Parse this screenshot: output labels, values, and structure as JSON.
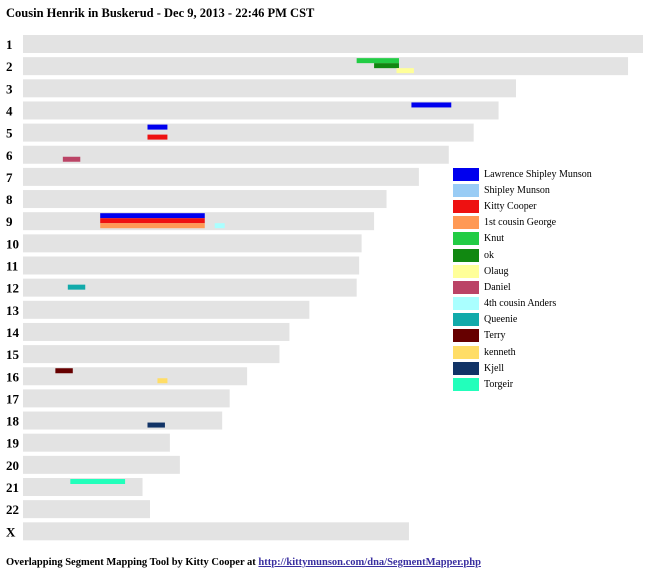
{
  "header": {
    "title": "Cousin Henrik in Buskerud - Dec 9, 2013 - 22:46 PM CST"
  },
  "footer": {
    "text": "Overlapping Segment Mapping Tool by Kitty Cooper at ",
    "link": "http://kittymunson.com/dna/SegmentMapper.php"
  },
  "chart_data": {
    "type": "segment-map",
    "title": "Cousin Henrik in Buskerud - Dec 9, 2013 - 22:46 PM CST",
    "chromosome_unit": "Mb",
    "chromosomes": [
      {
        "name": "1",
        "length": 249
      },
      {
        "name": "2",
        "length": 243
      },
      {
        "name": "3",
        "length": 198
      },
      {
        "name": "4",
        "length": 191
      },
      {
        "name": "5",
        "length": 181
      },
      {
        "name": "6",
        "length": 171
      },
      {
        "name": "7",
        "length": 159
      },
      {
        "name": "8",
        "length": 146
      },
      {
        "name": "9",
        "length": 141
      },
      {
        "name": "10",
        "length": 136
      },
      {
        "name": "11",
        "length": 135
      },
      {
        "name": "12",
        "length": 134
      },
      {
        "name": "13",
        "length": 115
      },
      {
        "name": "14",
        "length": 107
      },
      {
        "name": "15",
        "length": 103
      },
      {
        "name": "16",
        "length": 90
      },
      {
        "name": "17",
        "length": 83
      },
      {
        "name": "18",
        "length": 80
      },
      {
        "name": "19",
        "length": 59
      },
      {
        "name": "20",
        "length": 63
      },
      {
        "name": "21",
        "length": 48
      },
      {
        "name": "22",
        "length": 51
      },
      {
        "name": "X",
        "length": 155
      }
    ],
    "legend": [
      {
        "name": "Lawrence Shipley Munson",
        "color": "#0000ee"
      },
      {
        "name": "Shipley Munson",
        "color": "#99ccf5"
      },
      {
        "name": "Kitty Cooper",
        "color": "#ee1111"
      },
      {
        "name": "1st cousin George",
        "color": "#ff9955"
      },
      {
        "name": "Knut",
        "color": "#22cc44"
      },
      {
        "name": "ok",
        "color": "#118811"
      },
      {
        "name": "Olaug",
        "color": "#ffff99"
      },
      {
        "name": "Daniel",
        "color": "#bb4466"
      },
      {
        "name": "4th cousin Anders",
        "color": "#aaffff"
      },
      {
        "name": "Queenie",
        "color": "#11aaaa"
      },
      {
        "name": "Terry",
        "color": "#660000"
      },
      {
        "name": "kenneth",
        "color": "#ffdd66"
      },
      {
        "name": "Kjell",
        "color": "#113366"
      },
      {
        "name": "Torgeir",
        "color": "#22ffbb"
      }
    ],
    "segments": [
      {
        "chr": "2",
        "person": "Knut",
        "start": 134,
        "end": 151,
        "lane": 0
      },
      {
        "chr": "2",
        "person": "ok",
        "start": 141,
        "end": 151,
        "lane": 1
      },
      {
        "chr": "2",
        "person": "Olaug",
        "start": 150,
        "end": 157,
        "lane": 2
      },
      {
        "chr": "4",
        "person": "Lawrence Shipley Munson",
        "start": 156,
        "end": 172,
        "lane": 0
      },
      {
        "chr": "5",
        "person": "Lawrence Shipley Munson",
        "start": 50,
        "end": 58,
        "lane": 0
      },
      {
        "chr": "5",
        "person": "Kitty Cooper",
        "start": 50,
        "end": 58,
        "lane": 2
      },
      {
        "chr": "6",
        "person": "Daniel",
        "start": 16,
        "end": 23,
        "lane": 2
      },
      {
        "chr": "9",
        "person": "Lawrence Shipley Munson",
        "start": 31,
        "end": 73,
        "lane": 0
      },
      {
        "chr": "9",
        "person": "Kitty Cooper",
        "start": 31,
        "end": 73,
        "lane": 1
      },
      {
        "chr": "9",
        "person": "1st cousin George",
        "start": 31,
        "end": 73,
        "lane": 2
      },
      {
        "chr": "9",
        "person": "4th cousin Anders",
        "start": 77,
        "end": 81,
        "lane": 2
      },
      {
        "chr": "12",
        "person": "Queenie",
        "start": 18,
        "end": 25,
        "lane": 1
      },
      {
        "chr": "16",
        "person": "Terry",
        "start": 13,
        "end": 20,
        "lane": 0
      },
      {
        "chr": "16",
        "person": "kenneth",
        "start": 54,
        "end": 58,
        "lane": 2
      },
      {
        "chr": "18",
        "person": "Kjell",
        "start": 50,
        "end": 57,
        "lane": 2
      },
      {
        "chr": "21",
        "person": "Torgeir",
        "start": 19,
        "end": 41,
        "lane": 0
      }
    ]
  }
}
